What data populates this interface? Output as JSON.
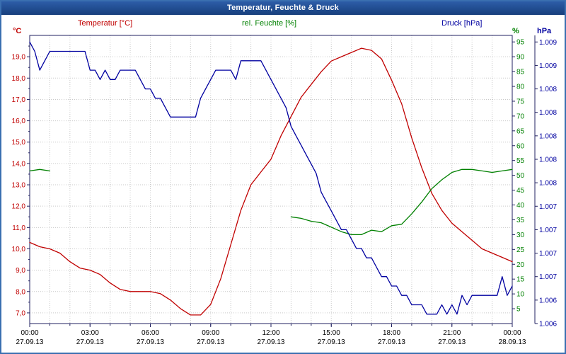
{
  "app": {
    "title": "Temperatur, Feuchte & Druck"
  },
  "chart_data": {
    "type": "line",
    "title": "Temperatur, Feuchte & Druck",
    "grid": true,
    "legend_position": "top",
    "x_ticks": {
      "hours": [
        0,
        3,
        6,
        9,
        12,
        15,
        18,
        21,
        24
      ],
      "times": [
        "00:00",
        "03:00",
        "06:00",
        "09:00",
        "12:00",
        "15:00",
        "18:00",
        "21:00",
        "00:00"
      ],
      "dates": [
        "27.09.13",
        "27.09.13",
        "27.09.13",
        "27.09.13",
        "27.09.13",
        "27.09.13",
        "27.09.13",
        "27.09.13",
        "28.09.13"
      ]
    },
    "axes": {
      "temperature": {
        "unit": "°C",
        "color": "#c00000",
        "min": 6.5,
        "max": 20.0,
        "tick_values": [
          19,
          18,
          17,
          16,
          15,
          14,
          13,
          12,
          11,
          10,
          9,
          8,
          7
        ],
        "tick_labels": [
          "19,0",
          "18,0",
          "17,0",
          "16,0",
          "15,0",
          "14,0",
          "13,0",
          "12,0",
          "11,0",
          "10,0",
          "9,0",
          "8,0",
          "7,0"
        ]
      },
      "humidity": {
        "unit": "%",
        "color": "#008000",
        "min": 0,
        "max": 97.2,
        "tick_values": [
          95,
          90,
          85,
          80,
          75,
          70,
          65,
          60,
          55,
          50,
          45,
          40,
          35,
          30,
          25,
          20,
          15,
          10,
          5
        ],
        "tick_labels": [
          "95",
          "90",
          "85",
          "80",
          "75",
          "70",
          "65",
          "60",
          "55",
          "50",
          "45",
          "40",
          "35",
          "30",
          "25",
          "20",
          "15",
          "10",
          "5"
        ]
      },
      "pressure": {
        "unit": "hPa",
        "color": "#0000a0",
        "min": 1.006,
        "max": 1.00907,
        "tick_values": [
          1.009,
          1.00875,
          1.0085,
          1.00825,
          1.008,
          1.00775,
          1.0075,
          1.00725,
          1.007,
          1.00675,
          1.0065,
          1.00625,
          1.006
        ],
        "tick_labels": [
          "1.009",
          "1.009",
          "1.008",
          "1.008",
          "1.008",
          "1.008",
          "1.008",
          "1.007",
          "1.007",
          "1.007",
          "1.007",
          "1.006",
          "1.006"
        ]
      }
    },
    "series": [
      {
        "id": "temperature",
        "name": "Temperatur [°C]",
        "color": "#c00000",
        "axis": "temperature",
        "x": [
          0,
          0.5,
          1,
          1.5,
          2,
          2.5,
          3,
          3.5,
          4,
          4.5,
          5,
          5.5,
          6,
          6.5,
          7,
          7.5,
          8,
          8.5,
          9,
          9.5,
          10,
          10.5,
          11,
          11.5,
          12,
          12.5,
          13,
          13.5,
          14,
          14.5,
          15,
          15.5,
          16,
          16.5,
          17,
          17.5,
          18,
          18.5,
          19,
          19.5,
          20,
          20.5,
          21,
          21.5,
          22,
          22.5,
          23,
          23.5,
          24
        ],
        "values": [
          10.3,
          10.1,
          10.0,
          9.8,
          9.4,
          9.1,
          9.0,
          8.8,
          8.4,
          8.1,
          8.0,
          8.0,
          8.0,
          7.9,
          7.6,
          7.2,
          6.9,
          6.9,
          7.4,
          8.6,
          10.2,
          11.8,
          13.0,
          13.6,
          14.2,
          15.3,
          16.2,
          17.1,
          17.7,
          18.3,
          18.8,
          19.0,
          19.2,
          19.4,
          19.3,
          18.9,
          17.9,
          16.8,
          15.2,
          13.8,
          12.6,
          11.8,
          11.2,
          10.8,
          10.4,
          10.0,
          9.8,
          9.6,
          9.4
        ]
      },
      {
        "id": "humidity",
        "name": "rel. Feuchte [%]",
        "color": "#008000",
        "axis": "humidity",
        "x": [
          0,
          0.5,
          1,
          1.5,
          2,
          2.5,
          3,
          3.5,
          4,
          4.5,
          5,
          5.5,
          6,
          6.5,
          7,
          7.5,
          8,
          8.5,
          9,
          9.5,
          10,
          10.5,
          11,
          11.5,
          12,
          12.5,
          13,
          13.5,
          14,
          14.5,
          15,
          15.5,
          16,
          16.5,
          17,
          17.5,
          18,
          18.5,
          19,
          19.5,
          20,
          20.5,
          21,
          21.5,
          22,
          22.5,
          23,
          23.5,
          24
        ],
        "values": [
          51.5,
          52,
          51.5,
          null,
          null,
          null,
          null,
          null,
          null,
          null,
          null,
          null,
          null,
          null,
          null,
          null,
          null,
          null,
          null,
          null,
          null,
          null,
          null,
          null,
          null,
          null,
          36,
          35.5,
          34.5,
          34,
          32.5,
          31,
          30,
          30,
          31.5,
          31,
          33,
          33.5,
          37,
          41,
          45.5,
          48.5,
          51,
          52,
          52,
          51.5,
          51,
          51.5,
          52
        ]
      },
      {
        "id": "pressure",
        "name": "Druck [hPa]",
        "color": "#0000a0",
        "axis": "pressure",
        "x": [
          0,
          0.25,
          0.5,
          0.75,
          1,
          1.5,
          2,
          2.5,
          2.75,
          3,
          3.25,
          3.5,
          3.75,
          4,
          4.25,
          4.5,
          5,
          5.25,
          5.5,
          5.75,
          6,
          6.25,
          6.5,
          6.75,
          7,
          7.5,
          8,
          8.25,
          8.5,
          8.75,
          9,
          9.25,
          9.5,
          10,
          10.25,
          10.5,
          11,
          11.25,
          11.5,
          11.75,
          12,
          12.25,
          12.5,
          12.75,
          13,
          13.25,
          13.5,
          13.75,
          14,
          14.25,
          14.5,
          14.75,
          15,
          15.25,
          15.5,
          15.75,
          16,
          16.25,
          16.5,
          16.75,
          17,
          17.25,
          17.5,
          17.75,
          18,
          18.25,
          18.5,
          18.75,
          19,
          19.5,
          19.75,
          20,
          20.25,
          20.5,
          20.75,
          21,
          21.25,
          21.5,
          21.75,
          22,
          22.25,
          22.75,
          23,
          23.25,
          23.5,
          23.75,
          24
        ],
        "values": [
          1.009,
          1.0089,
          1.0087,
          1.0088,
          1.0089,
          1.0089,
          1.0089,
          1.0089,
          1.0089,
          1.0087,
          1.0087,
          1.0086,
          1.0087,
          1.0086,
          1.0086,
          1.0087,
          1.0087,
          1.0087,
          1.0086,
          1.0085,
          1.0085,
          1.0084,
          1.0084,
          1.0083,
          1.0082,
          1.0082,
          1.0082,
          1.0082,
          1.0084,
          1.0085,
          1.0086,
          1.0087,
          1.0087,
          1.0087,
          1.0086,
          1.0088,
          1.0088,
          1.0088,
          1.0088,
          1.0087,
          1.0086,
          1.0085,
          1.0084,
          1.0083,
          1.0081,
          1.008,
          1.0079,
          1.0078,
          1.0077,
          1.0076,
          1.0074,
          1.0073,
          1.0072,
          1.0071,
          1.007,
          1.007,
          1.0069,
          1.0068,
          1.0068,
          1.0067,
          1.0067,
          1.0066,
          1.0065,
          1.0065,
          1.0064,
          1.0064,
          1.0063,
          1.0063,
          1.0062,
          1.0062,
          1.0061,
          1.0061,
          1.0061,
          1.0062,
          1.0061,
          1.0062,
          1.0061,
          1.0063,
          1.0062,
          1.0063,
          1.0063,
          1.0063,
          1.0063,
          1.0063,
          1.0065,
          1.0063,
          1.0064
        ]
      }
    ]
  },
  "colors": {
    "grid": "#c9c9c9",
    "axis": "#202060",
    "x_text": "#000000",
    "titlebar": "#1d4788",
    "border": "#3a6fb0"
  }
}
